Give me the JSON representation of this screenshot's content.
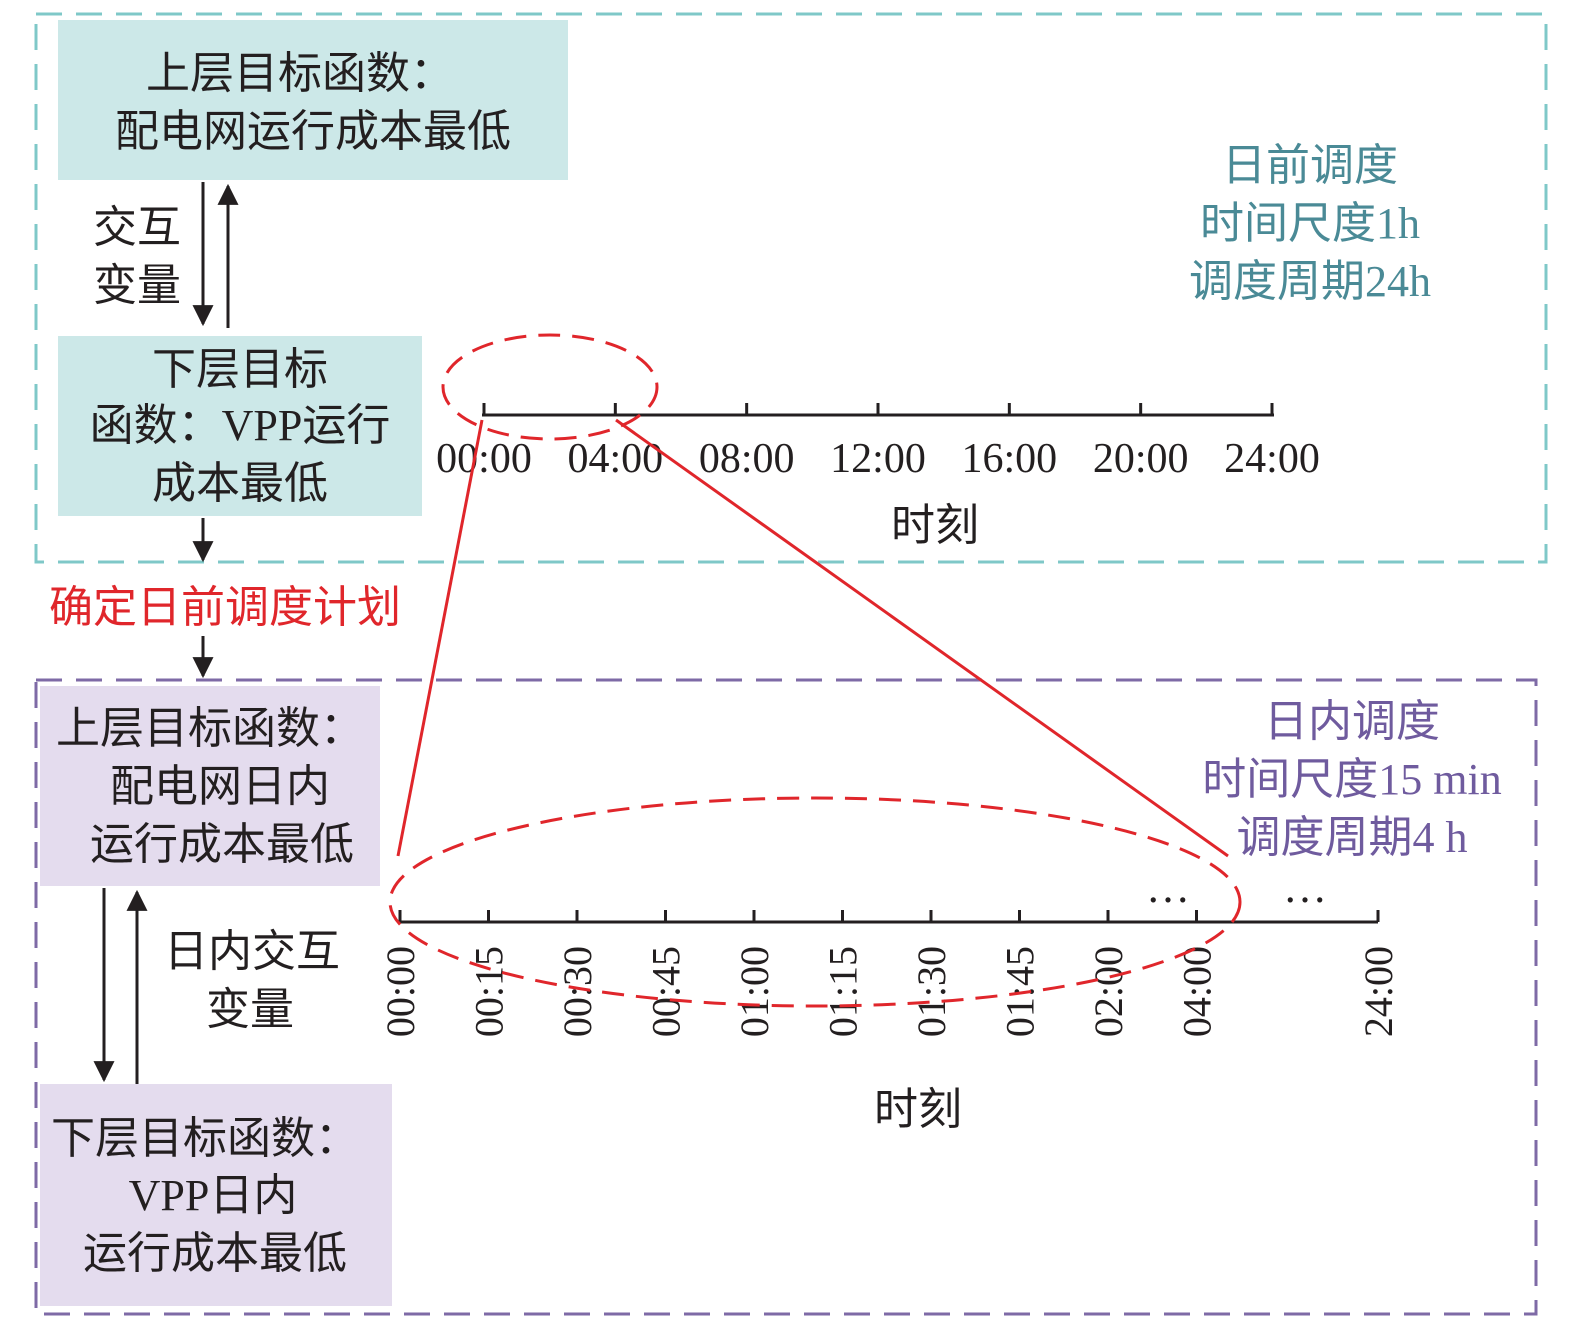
{
  "colors": {
    "day_ahead_accent": "#4a8a96",
    "day_ahead_border": "#7fc8c8",
    "day_ahead_box": "#cce8e8",
    "intraday_accent": "#6f5b9e",
    "intraday_border": "#7e6aa6",
    "intraday_box": "#e4dcee",
    "highlight": "#e0262b",
    "text": "#231f20"
  },
  "day_ahead": {
    "upper_box": [
      "上层目标函数：",
      "配电网运行成本最低"
    ],
    "interaction_label": [
      "交互",
      "变量"
    ],
    "lower_box": [
      "下层目标",
      "函数：VPP运行",
      "成本最低"
    ],
    "info": [
      "日前调度",
      "时间尺度1h",
      "调度周期24h"
    ],
    "axis_ticks": [
      "00:00",
      "04:00",
      "08:00",
      "12:00",
      "16:00",
      "20:00",
      "24:00"
    ],
    "axis_title": "时刻"
  },
  "transition_label": "确定日前调度计划",
  "intraday": {
    "upper_box": [
      "上层目标函数：",
      "配电网日内",
      "运行成本最低"
    ],
    "interaction_label": [
      "日内交互",
      "变量"
    ],
    "lower_box": [
      "下层目标函数：",
      "VPP日内",
      "运行成本最低"
    ],
    "info": [
      "日内调度",
      "时间尺度15 min",
      "调度周期4 h"
    ],
    "axis_ticks": [
      "00:00",
      "00:15",
      "00:30",
      "00:45",
      "01:00",
      "01:15",
      "01:30",
      "01:45",
      "02:00",
      "04:00",
      "24:00"
    ],
    "ellipsis": [
      "…",
      "…"
    ],
    "axis_title": "时刻"
  }
}
